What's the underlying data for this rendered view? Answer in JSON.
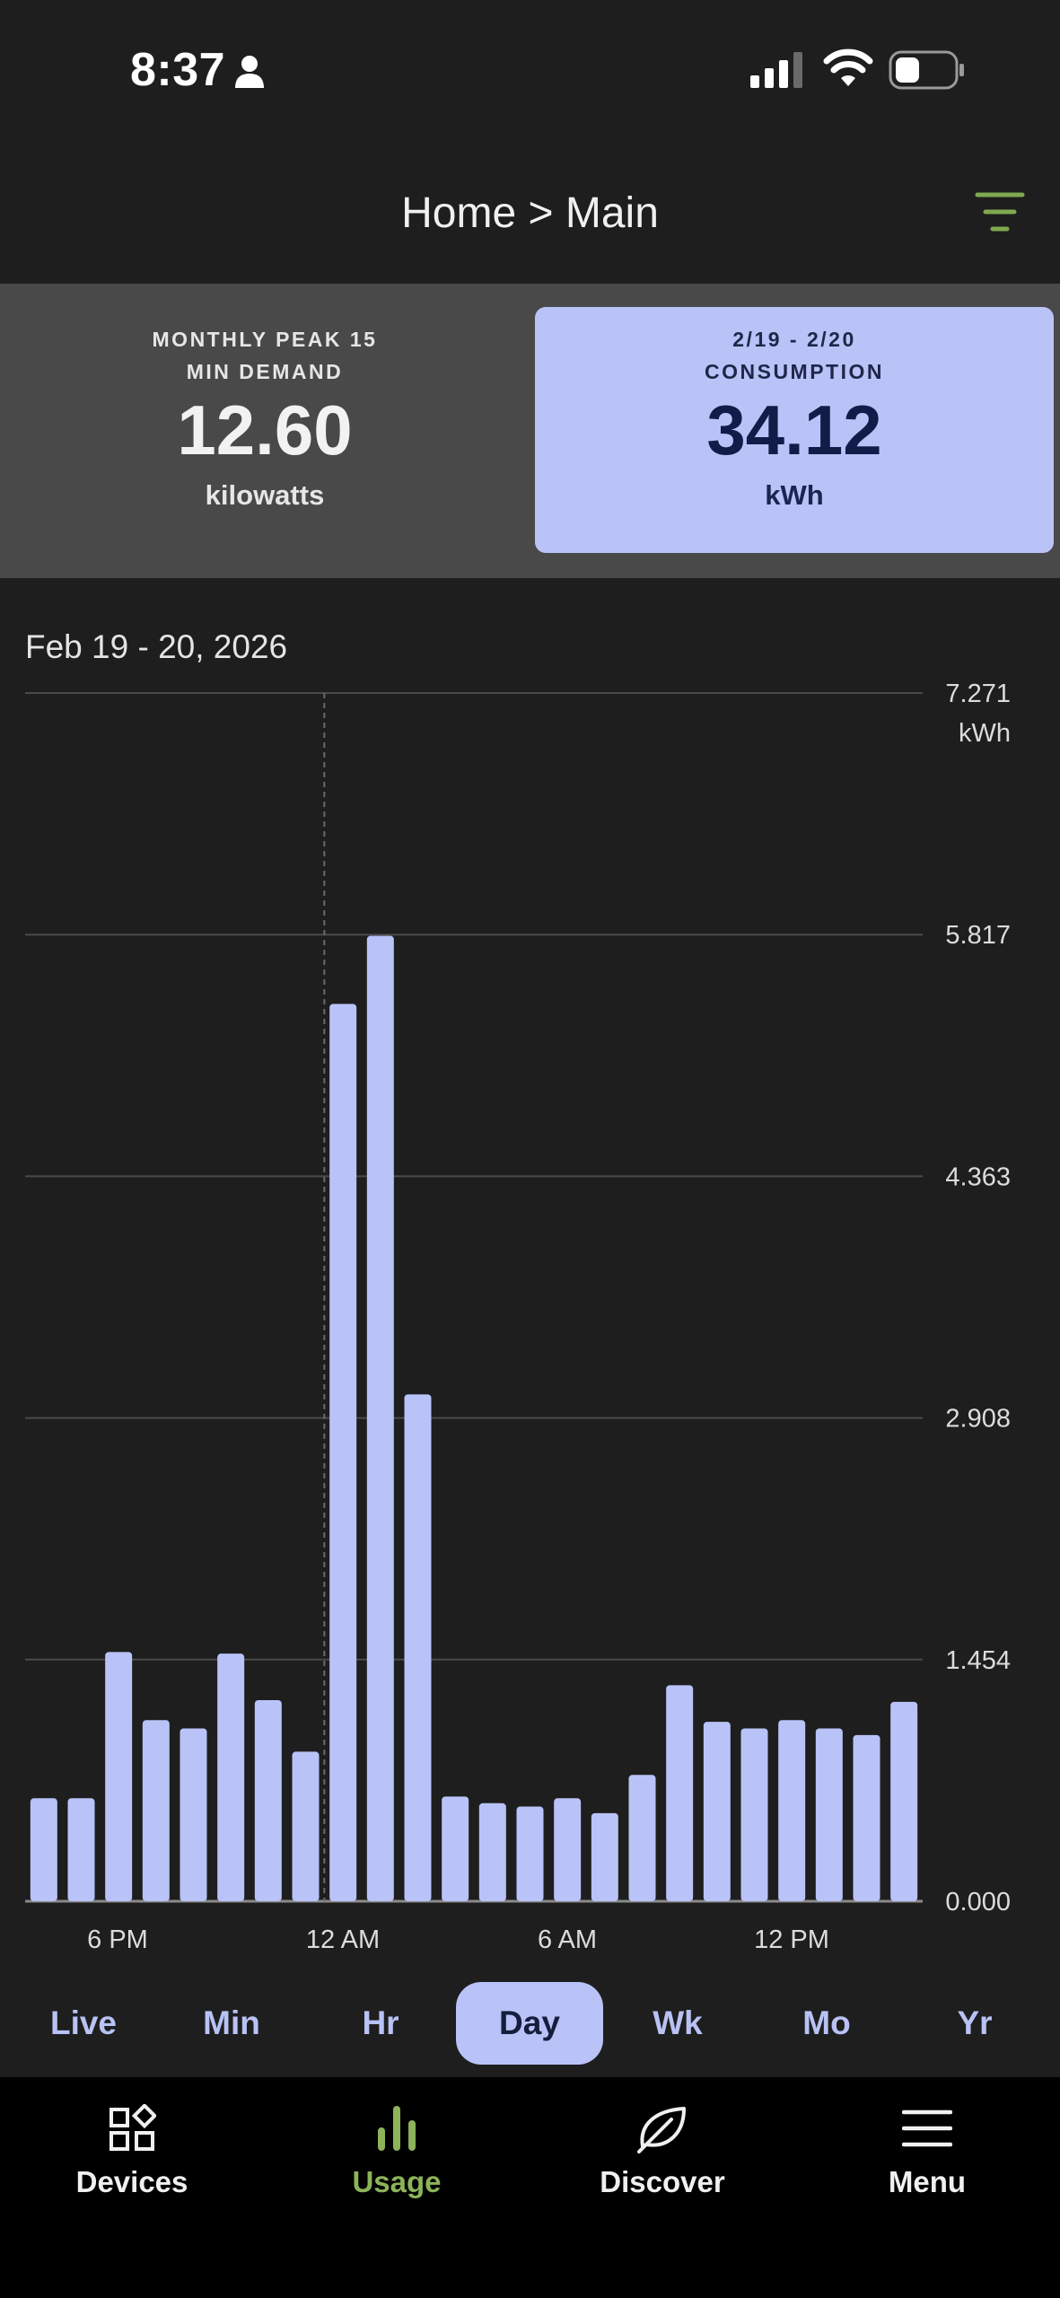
{
  "status_bar": {
    "time": "8:37"
  },
  "header": {
    "title": "Home > Main"
  },
  "cards": {
    "peak": {
      "label_line1": "MONTHLY PEAK 15",
      "label_line2": "MIN DEMAND",
      "value": "12.60",
      "unit": "kilowatts"
    },
    "consumption": {
      "label_line1": "2/19 - 2/20",
      "label_line2": "CONSUMPTION",
      "value": "34.12",
      "unit": "kWh"
    }
  },
  "chart": {
    "date_range": "Feb 19 - 20, 2026"
  },
  "chart_data": {
    "type": "bar",
    "ylabel": "kWh",
    "ylim": [
      0,
      7.271
    ],
    "yticks": [
      "0.000",
      "1.454",
      "2.908",
      "4.363",
      "5.817",
      "7.271"
    ],
    "xticks": [
      "6 PM",
      "12 AM",
      "6 AM",
      "12 PM"
    ],
    "grid": true,
    "values": [
      0.62,
      0.62,
      1.5,
      1.09,
      1.04,
      1.49,
      1.21,
      0.9,
      5.4,
      5.81,
      3.05,
      0.63,
      0.59,
      0.57,
      0.62,
      0.53,
      0.76,
      1.3,
      1.08,
      1.04,
      1.09,
      1.04,
      1.0,
      1.2
    ]
  },
  "range_selector": {
    "options": [
      "Live",
      "Min",
      "Hr",
      "Day",
      "Wk",
      "Mo",
      "Yr"
    ],
    "selected": "Day"
  },
  "nav": {
    "devices": "Devices",
    "usage": "Usage",
    "discover": "Discover",
    "menu": "Menu"
  },
  "colors": {
    "bar": "#b9c3f8",
    "accent_green": "#8db35a",
    "background": "#1e1e1e"
  }
}
